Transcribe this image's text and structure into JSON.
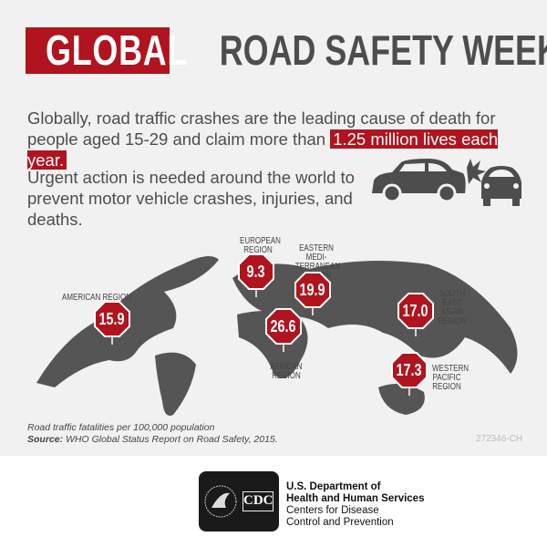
{
  "header": {
    "title_highlight": "GLOBAL",
    "title_rest": "ROAD SAFETY WEEK"
  },
  "intro": {
    "line1_pre": "Globally, road traffic crashes are the leading cause of death for people aged 15-29 and claim more than ",
    "line1_highlight": "1.25 million lives each year.",
    "line2": "Urgent action is needed around the world to prevent motor vehicle crashes, injuries, and deaths."
  },
  "regions": [
    {
      "name": "AMERICAN REGION",
      "value": "15.9"
    },
    {
      "name": "EUROPEAN REGION",
      "value": "9.3"
    },
    {
      "name": "EASTERN MEDI-TERRANEAN REGION",
      "value": "19.9"
    },
    {
      "name": "AFRICAN REGION",
      "value": "26.6"
    },
    {
      "name": "SOUTH EAST ASIAN REGION",
      "value": "17.0"
    },
    {
      "name": "WESTERN PACIFIC REGION",
      "value": "17.3"
    }
  ],
  "notes": {
    "unit": "Road traffic fatalities per 100,000 population",
    "source_label": "Source:",
    "source": " WHO Global Status Report on Road Safety, 2015.",
    "code": "272346-CH"
  },
  "footer": {
    "logo_text": "CDC",
    "dept1": "U.S. Department of",
    "dept2": "Health and Human Services",
    "cdc1": "Centers for Disease",
    "cdc2": "Control and Prevention"
  },
  "colors": {
    "accent": "#b0141e",
    "text": "#4d4d4d",
    "map": "#555555",
    "background": "#f1f1f1"
  }
}
